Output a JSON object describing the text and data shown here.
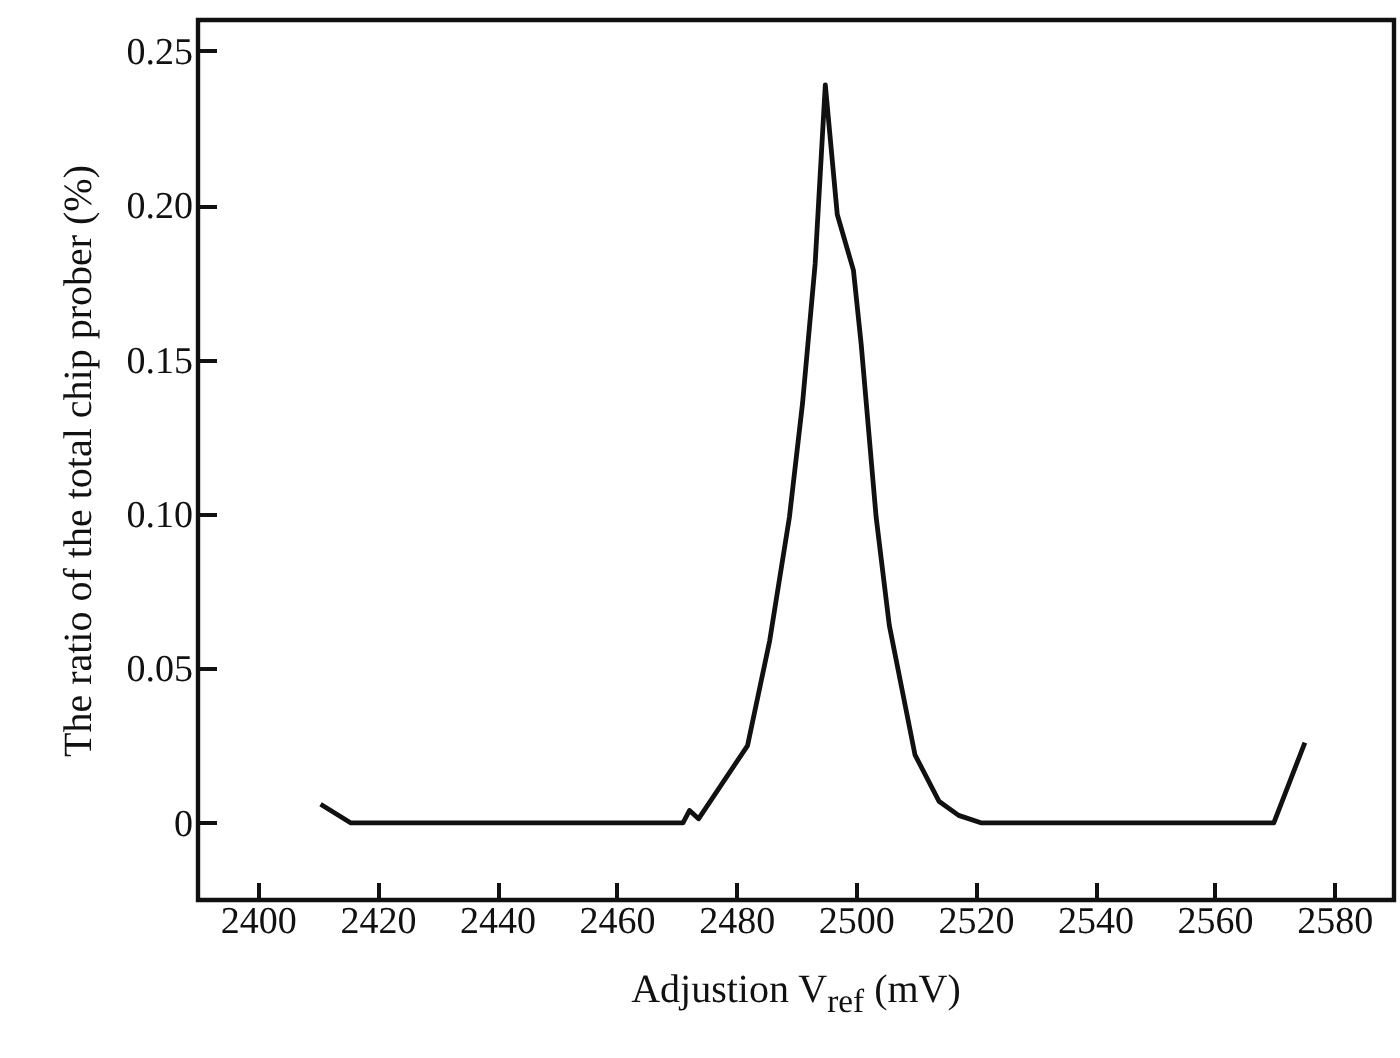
{
  "chart_data": {
    "type": "line",
    "xlabel": "Adjustion V$_{ref}$ (mV)",
    "ylabel": "The ratio of the total chip prober (%)",
    "xlim": [
      2390,
      2590
    ],
    "xticks": [
      2400,
      2420,
      2440,
      2460,
      2480,
      2500,
      2520,
      2540,
      2560,
      2580
    ],
    "ylim": [
      -0.025,
      0.26
    ],
    "yticks": [
      0,
      0.05,
      {
        "value": 0.1,
        "label": "0.10"
      },
      0.15,
      {
        "value": 0.2,
        "label": "0.20"
      },
      0.25
    ],
    "grid": false,
    "marker": "none",
    "line_style": "solid",
    "series": [
      {
        "color": "#111111",
        "x": [
          2410.5,
          2415.5,
          2471.1,
          2472.2,
          2473.7,
          2481.9,
          2485.6,
          2488.9,
          2491.1,
          2493.2,
          2494.9,
          2496.9,
          2499.6,
          2500.9,
          2503.4,
          2505.6,
          2509.9,
          2513.9,
          2517.2,
          2520.9,
          2569.9,
          2575.1
        ],
        "values": [
          0.006,
          0,
          0,
          0.004,
          0.0013,
          0.025,
          0.059,
          0.099,
          0.136,
          0.181,
          0.239,
          0.197,
          0.179,
          0.155,
          0.099,
          0.064,
          0.022,
          0.007,
          0.0024,
          0,
          0,
          0.026
        ]
      }
    ]
  }
}
